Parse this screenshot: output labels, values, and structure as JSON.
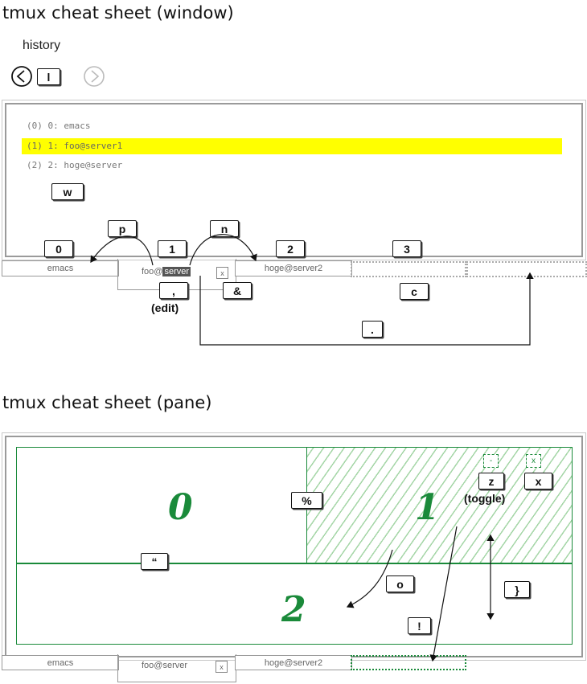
{
  "window_section": {
    "title": "tmux cheat sheet (window)",
    "history": {
      "label": "history",
      "prev_key": "l"
    },
    "window_list": [
      {
        "text": "(0)  0: emacs",
        "highlighted": false
      },
      {
        "text": "(1)  1: foo@server1",
        "highlighted": true
      },
      {
        "text": "(2)  2: hoge@server",
        "highlighted": false
      }
    ],
    "list_key": "w",
    "keys": {
      "prev": "p",
      "next": "n",
      "rename": ",",
      "kill": "&",
      "create": "c",
      "move": "."
    },
    "rename_caption": "(edit)",
    "tab_numbers": [
      "0",
      "1",
      "2",
      "3"
    ],
    "tabs": {
      "emacs": "emacs",
      "foo_prefix": "foo@",
      "foo_host": "server",
      "hoge": "hoge@server2",
      "close": "x"
    },
    "highlight_color": "#ffff00"
  },
  "pane_section": {
    "title": "tmux cheat sheet (pane)",
    "pane_numbers": [
      "0",
      "1",
      "2"
    ],
    "keys": {
      "split_h": "%",
      "split_v": "“",
      "zoom": "z",
      "kill": "x",
      "cycle": "o",
      "break": "!",
      "swap": "}",
      "zoom_icon": "-",
      "close_icon": "x"
    },
    "zoom_caption": "(toggle)",
    "tabs": {
      "emacs": "emacs",
      "foo": "foo@server",
      "close": "x",
      "hoge": "hoge@server2"
    },
    "accent_color": "#1a8a3a"
  }
}
